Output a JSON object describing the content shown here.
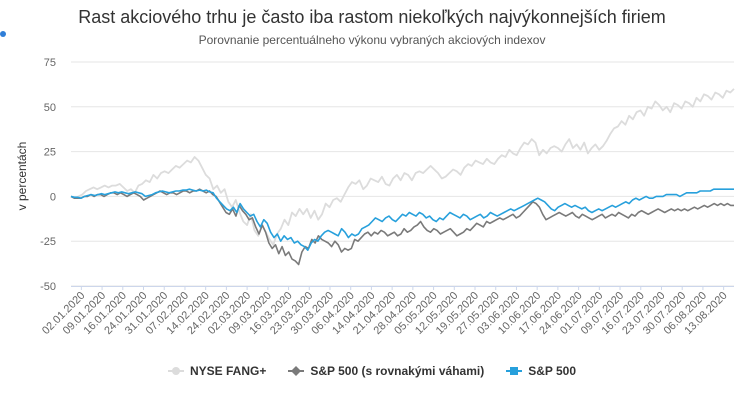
{
  "chart_data": {
    "type": "line",
    "title": "Rast akciového trhu je často iba rastom niekoľkých najvýkonnejších firiem",
    "subtitle": "Porovnanie percentuálneho výkonu vybraných akciových indexov",
    "ylabel": "v percentách",
    "ylim": [
      -50,
      75
    ],
    "yticks": [
      -50,
      -25,
      0,
      25,
      50,
      75
    ],
    "xtick_labels": [
      "02.01.2020",
      "09.01.2020",
      "16.01.2020",
      "24.01.2020",
      "31.01.2020",
      "07.02.2020",
      "14.02.2020",
      "24.02.2020",
      "02.03.2020",
      "09.03.2020",
      "16.03.2020",
      "23.03.2020",
      "30.03.2020",
      "06.04.2020",
      "14.04.2020",
      "21.04.2020",
      "28.04.2020",
      "05.05.2020",
      "12.05.2020",
      "19.05.2020",
      "27.05.2020",
      "03.06.2020",
      "10.06.2020",
      "17.06.2020",
      "24.06.2020",
      "01.07.2020",
      "09.07.2020",
      "16.07.2020",
      "23.07.2020",
      "30.07.2020",
      "06.08.2020",
      "13.08.2020"
    ],
    "grid": true,
    "legend_position": "bottom-center",
    "series": [
      {
        "name": "NYSE FANG+",
        "color": "#dcdcdc",
        "marker": "circle",
        "values": [
          0,
          -1,
          0,
          1,
          3,
          4,
          5,
          4,
          5,
          6,
          5,
          6,
          6,
          7,
          5,
          3,
          4,
          2,
          6,
          7,
          9,
          8,
          12,
          10,
          13,
          14,
          13,
          15,
          17,
          16,
          18,
          20,
          19,
          22,
          20,
          16,
          12,
          10,
          4,
          6,
          2,
          4,
          -3,
          -6,
          -2,
          -9,
          -14,
          -16,
          -10,
          -19,
          -22,
          -16,
          -20,
          -24,
          -27,
          -21,
          -18,
          -13,
          -16,
          -9,
          -11,
          -7,
          -10,
          -7,
          -12,
          -8,
          -13,
          -10,
          -4,
          -6,
          -2,
          -1,
          -3,
          1,
          5,
          8,
          7,
          9,
          4,
          6,
          10,
          9,
          8,
          11,
          7,
          6,
          10,
          12,
          9,
          13,
          12,
          9,
          13,
          14,
          13,
          15,
          17,
          15,
          13,
          10,
          11,
          13,
          15,
          14,
          12,
          16,
          18,
          17,
          20,
          19,
          18,
          21,
          19,
          18,
          21,
          23,
          22,
          26,
          24,
          23,
          27,
          30,
          29,
          32,
          30,
          23,
          26,
          24,
          27,
          28,
          27,
          25,
          29,
          32,
          27,
          29,
          26,
          30,
          24,
          27,
          29,
          26,
          28,
          31,
          35,
          38,
          39,
          42,
          40,
          45,
          43,
          47,
          48,
          45,
          50,
          49,
          53,
          51,
          48,
          50,
          47,
          52,
          51,
          49,
          53,
          52,
          50,
          55,
          53,
          57,
          56,
          54,
          58,
          57,
          55,
          59,
          58,
          60
        ]
      },
      {
        "name": "S&P 500 (s rovnakými váhami)",
        "color": "#7a7a7a",
        "marker": "diamond",
        "values": [
          0,
          -1,
          -1,
          -1,
          0,
          0,
          1,
          0,
          1,
          1,
          0,
          1,
          2,
          2,
          1,
          2,
          1,
          0,
          1,
          2,
          1,
          0,
          -2,
          -1,
          0,
          1,
          2,
          3,
          2,
          1,
          2,
          2,
          1,
          2,
          3,
          3,
          2,
          3,
          3,
          4,
          3,
          2,
          3,
          1,
          0,
          -3,
          -6,
          -9,
          -10,
          -7,
          -11,
          -5,
          -8,
          -10,
          -13,
          -12,
          -17,
          -21,
          -16,
          -20,
          -26,
          -29,
          -27,
          -32,
          -28,
          -33,
          -31,
          -35,
          -36,
          -38,
          -31,
          -28,
          -29,
          -24,
          -26,
          -22,
          -24,
          -25,
          -26,
          -28,
          -25,
          -27,
          -31,
          -29,
          -30,
          -29,
          -24,
          -25,
          -23,
          -21,
          -20,
          -22,
          -20,
          -21,
          -19,
          -20,
          -22,
          -21,
          -20,
          -22,
          -21,
          -18,
          -20,
          -19,
          -17,
          -16,
          -14,
          -17,
          -19,
          -20,
          -18,
          -19,
          -21,
          -20,
          -19,
          -18,
          -20,
          -22,
          -21,
          -20,
          -18,
          -19,
          -17,
          -15,
          -16,
          -17,
          -14,
          -15,
          -14,
          -13,
          -12,
          -13,
          -12,
          -11,
          -10,
          -12,
          -11,
          -9,
          -7,
          -5,
          -3,
          -4,
          -6,
          -10,
          -13,
          -12,
          -11,
          -10,
          -9,
          -10,
          -11,
          -10,
          -9,
          -11,
          -12,
          -10,
          -11,
          -12,
          -13,
          -12,
          -11,
          -10,
          -12,
          -11,
          -10,
          -11,
          -9,
          -10,
          -11,
          -12,
          -10,
          -11,
          -9,
          -8,
          -9,
          -10,
          -9,
          -8,
          -7,
          -8,
          -9,
          -8,
          -7,
          -8,
          -7,
          -8,
          -7,
          -8,
          -7,
          -6,
          -7,
          -6,
          -5,
          -6,
          -5,
          -4,
          -5,
          -4,
          -5,
          -4,
          -5,
          -5
        ]
      },
      {
        "name": "S&P 500",
        "color": "#27a0dc",
        "marker": "square",
        "values": [
          0,
          -0.5,
          -0.5,
          -1,
          0,
          0.5,
          1,
          0.5,
          1,
          1.5,
          1,
          1.5,
          2,
          2.5,
          2,
          2.5,
          2,
          1.5,
          2,
          2.5,
          2,
          1.5,
          0,
          0.5,
          1,
          2,
          2.5,
          3,
          2.5,
          2,
          2.5,
          3,
          3,
          3.5,
          3.5,
          4,
          3.5,
          3,
          3.5,
          3,
          3.5,
          2.5,
          2,
          -1,
          -3,
          -5,
          -7,
          -8,
          -6,
          -9,
          -4,
          -7,
          -9,
          -11,
          -10,
          -14,
          -17,
          -13,
          -15,
          -20,
          -23,
          -21,
          -25,
          -22,
          -24,
          -23,
          -26,
          -25,
          -27,
          -28,
          -30,
          -26,
          -24,
          -25,
          -22,
          -20,
          -19,
          -20,
          -21,
          -22,
          -18,
          -20,
          -23,
          -21,
          -22,
          -21,
          -18,
          -17,
          -16,
          -14,
          -12,
          -13,
          -14,
          -12,
          -11,
          -13,
          -14,
          -12,
          -10,
          -11,
          -9,
          -10,
          -11,
          -9,
          -10,
          -12,
          -11,
          -13,
          -14,
          -12,
          -13,
          -11,
          -9,
          -10,
          -11,
          -12,
          -10,
          -11,
          -13,
          -12,
          -11,
          -10,
          -12,
          -11,
          -9,
          -10,
          -11,
          -10,
          -9,
          -8,
          -7,
          -8,
          -7,
          -6,
          -5,
          -4,
          -3,
          -2,
          -1,
          -2,
          -3,
          -5,
          -7,
          -8,
          -6,
          -5,
          -4,
          -5,
          -6,
          -5,
          -6,
          -7,
          -6,
          -8,
          -9,
          -8,
          -7,
          -8,
          -7,
          -6,
          -5,
          -6,
          -5,
          -4,
          -3,
          -4,
          -2,
          -1,
          -2,
          -1,
          0,
          -1,
          -1,
          0,
          0,
          0,
          1,
          1,
          1,
          1,
          0,
          1,
          2,
          2,
          2,
          2,
          3,
          3,
          3,
          3,
          4,
          4,
          4,
          4,
          4,
          4,
          4
        ]
      }
    ]
  }
}
